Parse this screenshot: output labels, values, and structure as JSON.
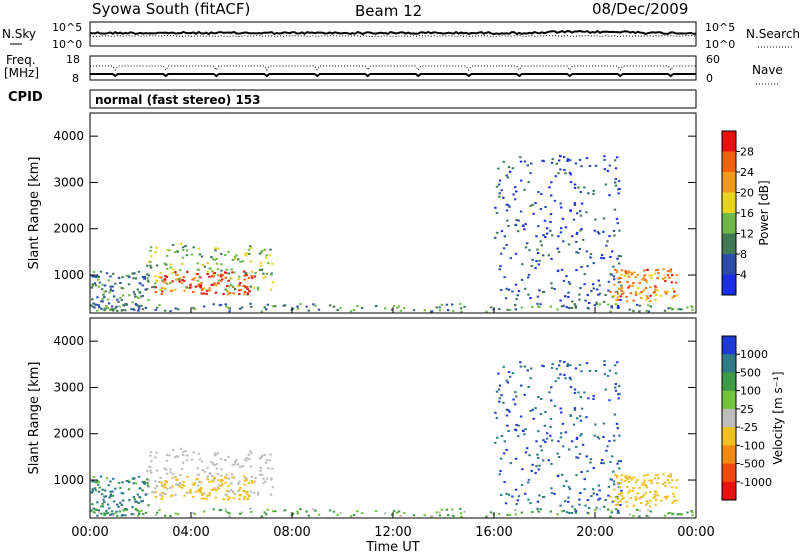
{
  "header": {
    "station": "Syowa South (fitACF)",
    "beam": "Beam 12",
    "date": "08/Dec/2009"
  },
  "sky_panel": {
    "left_label": "N.Sky",
    "right_label": "N.Search",
    "tick_top": "10^5",
    "tick_bottom": "10^0"
  },
  "freq_panel": {
    "label_line1": "Freq.",
    "label_line2": "[MHz]",
    "tick_top": "18",
    "tick_bottom": "8",
    "right_tick_top": "60",
    "right_tick_bottom": "0",
    "right_label": "Nave"
  },
  "cpid": {
    "label": "CPID",
    "value": "normal (fast stereo) 153"
  },
  "x_axis": {
    "ticks": [
      "00:00",
      "04:00",
      "08:00",
      "12:00",
      "16:00",
      "20:00",
      "00:00"
    ],
    "label": "Time UT"
  },
  "power_panel": {
    "ylabel": "Slant Range [km]",
    "yticks": [
      "1000",
      "2000",
      "3000",
      "4000"
    ],
    "colorbar_label": "Power [dB]",
    "colorbar_ticks": [
      "4",
      "8",
      "12",
      "16",
      "20",
      "24",
      "28"
    ],
    "colorbar_colors": [
      "#1a2ee6",
      "#2b4fa8",
      "#3f7a55",
      "#6fb94a",
      "#e8d21c",
      "#f29a1a",
      "#f2620f",
      "#e81010"
    ]
  },
  "velocity_panel": {
    "ylabel": "Slant Range [km]",
    "yticks": [
      "1000",
      "2000",
      "3000",
      "4000"
    ],
    "colorbar_label": "Velocity [m s⁻¹]",
    "colorbar_ticks": [
      "1000",
      "500",
      "100",
      "25",
      "-25",
      "-100",
      "-500",
      "-1000"
    ],
    "colorbar_colors": [
      "#1e3ad4",
      "#2f7a86",
      "#3d9a46",
      "#72c43c",
      "#bdbdbd",
      "#f0c020",
      "#f08a12",
      "#f24a0e",
      "#e81010"
    ]
  },
  "chart_data": {
    "type": "heatmap",
    "title": "Syowa South (fitACF) Beam 12 08/Dec/2009",
    "xlabel": "Time UT",
    "ylabel": "Slant Range [km]",
    "x_range_hours": [
      0,
      24
    ],
    "y_range_km": [
      180,
      4500
    ],
    "power_scale_db": [
      0,
      30
    ],
    "velocity_scale_ms": [
      -1000,
      1000
    ],
    "scatter_regions": [
      {
        "t_start": 2.5,
        "t_end": 6.5,
        "range_start": 600,
        "range_end": 1100,
        "power_db": 26,
        "velocity_ms": -300
      },
      {
        "t_start": 2.2,
        "t_end": 7.2,
        "range_start": 700,
        "range_end": 1700,
        "power_db": 13,
        "velocity_ms": -60
      },
      {
        "t_start": 0.0,
        "t_end": 2.3,
        "range_start": 250,
        "range_end": 1100,
        "power_db": 9,
        "velocity_ms": 150
      },
      {
        "t_start": 16.0,
        "t_end": 21.0,
        "range_start": 300,
        "range_end": 3600,
        "power_db": 5,
        "velocity_ms": 400
      },
      {
        "t_start": 20.5,
        "t_end": 23.2,
        "range_start": 450,
        "range_end": 1150,
        "power_db": 22,
        "velocity_ms": -350
      },
      {
        "t_start": 0.0,
        "t_end": 24.0,
        "range_start": 230,
        "range_end": 400,
        "power_db": 10,
        "velocity_ms": 20
      }
    ]
  }
}
